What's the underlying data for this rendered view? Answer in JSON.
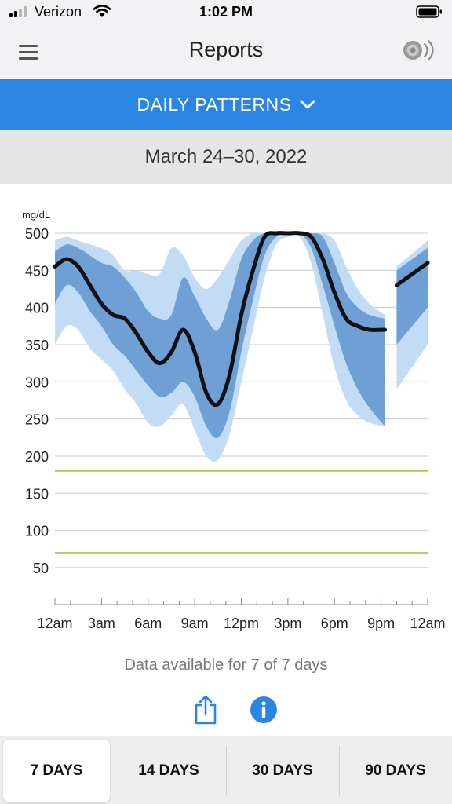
{
  "status_bar": {
    "carrier": "Verizon",
    "time": "1:02 PM"
  },
  "header": {
    "title": "Reports",
    "menu_icon": "hamburger-menu-icon",
    "sensor_icon": "sensor-scan-icon"
  },
  "report_selector": {
    "label": "DAILY PATTERNS",
    "icon": "chevron-down-icon"
  },
  "date_range": "March 24–30, 2022",
  "chart_data": {
    "type": "area",
    "ylabel": "mg/dL",
    "ylim": [
      0,
      500
    ],
    "yticks": [
      "500",
      "450",
      "400",
      "350",
      "300",
      "250",
      "200",
      "150",
      "100",
      "50"
    ],
    "xticks": [
      "12am",
      "3am",
      "6am",
      "9am",
      "12pm",
      "3pm",
      "6pm",
      "9pm",
      "12am"
    ],
    "x_range_hours": [
      0,
      24
    ],
    "target_range": {
      "low": 70,
      "high": 180,
      "color": "#8dc63f"
    },
    "colors": {
      "outer_band": "#c3dcf6",
      "inner_band": "#6ea0d6",
      "median": "#111111"
    },
    "segments": [
      {
        "hours": [
          0,
          0.75,
          1.5,
          2.25,
          3,
          3.75,
          4.5,
          5.25,
          6,
          6.75,
          7.5,
          8.25,
          9,
          9.75,
          10.5,
          11.25,
          12,
          12.75,
          13.5,
          14.25,
          15,
          15.75,
          16.5,
          17.25,
          18,
          18.75,
          19.5,
          20.25,
          21.25
        ],
        "median": [
          455,
          465,
          455,
          430,
          405,
          390,
          385,
          365,
          340,
          325,
          340,
          370,
          340,
          285,
          270,
          310,
          390,
          450,
          495,
          500,
          500,
          500,
          495,
          465,
          420,
          385,
          375,
          370,
          370
        ],
        "p25": [
          405,
          430,
          420,
          395,
          375,
          350,
          335,
          315,
          295,
          280,
          285,
          300,
          280,
          240,
          225,
          260,
          340,
          410,
          470,
          495,
          500,
          500,
          480,
          430,
          375,
          325,
          290,
          265,
          240
        ],
        "p75": [
          475,
          485,
          480,
          470,
          460,
          455,
          440,
          420,
          395,
          385,
          390,
          440,
          415,
          385,
          370,
          410,
          465,
          490,
          500,
          500,
          500,
          500,
          500,
          495,
          460,
          420,
          400,
          390,
          385
        ],
        "p10": [
          350,
          375,
          370,
          345,
          330,
          315,
          290,
          270,
          245,
          240,
          255,
          270,
          235,
          200,
          195,
          230,
          300,
          370,
          440,
          485,
          495,
          495,
          460,
          390,
          320,
          275,
          255,
          245,
          240
        ],
        "p90": [
          490,
          495,
          490,
          485,
          480,
          470,
          450,
          450,
          445,
          445,
          480,
          470,
          440,
          425,
          440,
          465,
          490,
          500,
          500,
          500,
          500,
          500,
          500,
          500,
          490,
          455,
          425,
          405,
          390
        ]
      },
      {
        "hours": [
          22,
          24
        ],
        "median": [
          430,
          460
        ],
        "p25": [
          350,
          400
        ],
        "p75": [
          450,
          480
        ],
        "p10": [
          290,
          350
        ],
        "p90": [
          455,
          490
        ]
      }
    ]
  },
  "availability_text": "Data available for 7 of 7 days",
  "actions": {
    "share_icon": "share-icon",
    "info_icon": "info-icon"
  },
  "tabs": [
    {
      "label": "7 DAYS",
      "active": true
    },
    {
      "label": "14 DAYS",
      "active": false
    },
    {
      "label": "30 DAYS",
      "active": false
    },
    {
      "label": "90 DAYS",
      "active": false
    }
  ]
}
